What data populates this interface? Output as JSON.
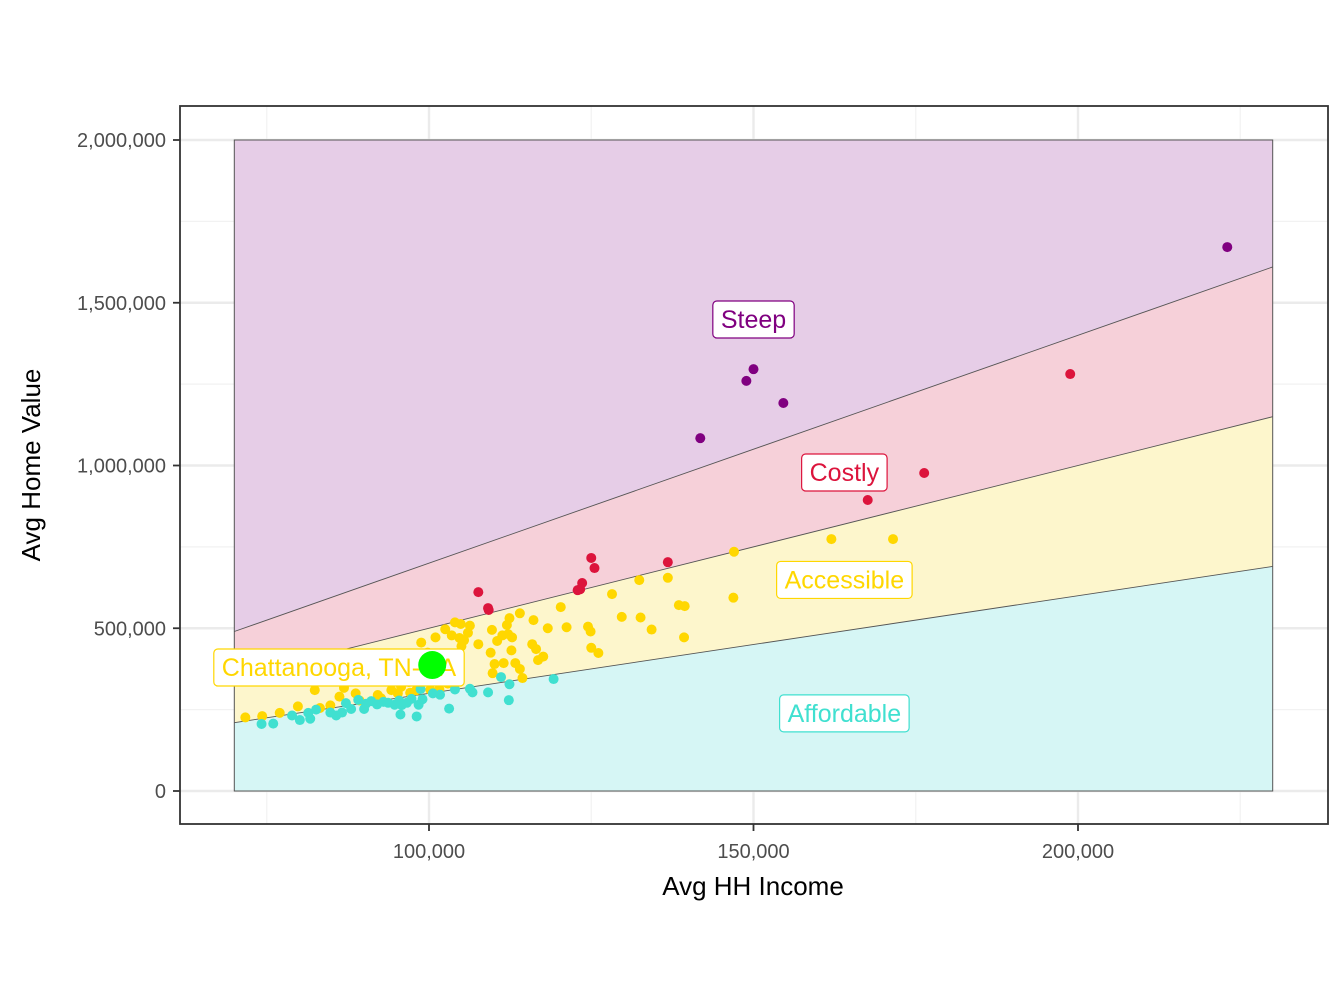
{
  "chart_data": {
    "type": "scatter",
    "title": "",
    "xlabel": "Avg HH Income",
    "ylabel": "Avg Home Value",
    "xlim": [
      62000,
      238000
    ],
    "ylim": [
      -90000,
      2105000
    ],
    "x_ticks": [
      100000,
      150000,
      200000
    ],
    "x_tick_labels": [
      "100,000",
      "150,000",
      "200,000"
    ],
    "y_ticks": [
      0,
      500000,
      1000000,
      1500000,
      2000000
    ],
    "y_tick_labels": [
      "0",
      "500,000",
      "1,000,000",
      "1,500,000",
      "2,000,000"
    ],
    "grid": true,
    "legend": null,
    "regions": {
      "x_range": [
        70000,
        230000
      ],
      "y_max": 2000000,
      "bands": [
        {
          "name": "Affordable",
          "ratio_low": 0,
          "ratio_high": 3,
          "fill": "#d6f6f5",
          "color": "#40e0d0"
        },
        {
          "name": "Accessible",
          "ratio_low": 3,
          "ratio_high": 5,
          "fill": "#fdf6cc",
          "color": "#ffd700"
        },
        {
          "name": "Costly",
          "ratio_low": 5,
          "ratio_high": 7,
          "fill": "#f6d0d9",
          "color": "#dc143c"
        },
        {
          "name": "Steep",
          "ratio_low": 7,
          "ratio_high": null,
          "fill": "#e6cde7",
          "color": "#800080"
        }
      ]
    },
    "region_labels": [
      {
        "text": "Steep",
        "x": 150000,
        "y": 1450000,
        "color": "#800080"
      },
      {
        "text": "Costly",
        "x": 164000,
        "y": 980000,
        "color": "#dc143c"
      },
      {
        "text": "Accessible",
        "x": 164000,
        "y": 650000,
        "color": "#ffd700"
      },
      {
        "text": "Affordable",
        "x": 164000,
        "y": 240000,
        "color": "#40e0d0"
      }
    ],
    "highlight": {
      "label": "Chattanooga, TN-GA",
      "x": 100500,
      "y": 387000,
      "color": "#00ff00",
      "label_color": "#ffd700"
    },
    "series": [
      {
        "name": "Steep",
        "color": "#800080",
        "points": [
          [
            223000,
            1671000
          ],
          [
            150000,
            1296000
          ],
          [
            148900,
            1260000
          ],
          [
            154600,
            1192000
          ],
          [
            141800,
            1084000
          ]
        ]
      },
      {
        "name": "Costly",
        "color": "#dc143c",
        "points": [
          [
            198800,
            1281000
          ],
          [
            176300,
            977000
          ],
          [
            167600,
            894000
          ],
          [
            136800,
            703000
          ],
          [
            125000,
            716000
          ],
          [
            125500,
            685000
          ],
          [
            123600,
            639000
          ],
          [
            123300,
            620000
          ],
          [
            122900,
            617000
          ],
          [
            107600,
            611000
          ],
          [
            109200,
            556000
          ],
          [
            109100,
            562000
          ]
        ]
      },
      {
        "name": "Accessible",
        "color": "#ffd700",
        "points": [
          [
            162000,
            774000
          ],
          [
            171500,
            774000
          ],
          [
            147000,
            735000
          ],
          [
            136800,
            655000
          ],
          [
            146900,
            594000
          ],
          [
            132400,
            648000
          ],
          [
            128200,
            605000
          ],
          [
            139400,
            568000
          ],
          [
            138500,
            571000
          ],
          [
            129700,
            535000
          ],
          [
            132600,
            533000
          ],
          [
            134300,
            496000
          ],
          [
            139300,
            472000
          ],
          [
            120300,
            565000
          ],
          [
            118300,
            500000
          ],
          [
            121200,
            503000
          ],
          [
            116100,
            525000
          ],
          [
            114000,
            546000
          ],
          [
            112400,
            531000
          ],
          [
            124900,
            490000
          ],
          [
            124500,
            505000
          ],
          [
            125000,
            440000
          ],
          [
            126100,
            424000
          ],
          [
            117600,
            413000
          ],
          [
            115900,
            451000
          ],
          [
            116500,
            436000
          ],
          [
            116800,
            402000
          ],
          [
            112200,
            482000
          ],
          [
            111300,
            478000
          ],
          [
            112800,
            472000
          ],
          [
            112000,
            510000
          ],
          [
            109700,
            495000
          ],
          [
            110500,
            461000
          ],
          [
            112700,
            432000
          ],
          [
            113300,
            393000
          ],
          [
            114000,
            375000
          ],
          [
            111500,
            393000
          ],
          [
            114400,
            347000
          ],
          [
            104000,
            518000
          ],
          [
            104900,
            513000
          ],
          [
            106300,
            508000
          ],
          [
            102500,
            497000
          ],
          [
            106000,
            486000
          ],
          [
            103500,
            478000
          ],
          [
            104700,
            470000
          ],
          [
            105400,
            463000
          ],
          [
            107600,
            451000
          ],
          [
            105000,
            445000
          ],
          [
            103900,
            420000
          ],
          [
            104100,
            402000
          ],
          [
            109500,
            425000
          ],
          [
            110100,
            390000
          ],
          [
            109800,
            362000
          ],
          [
            101000,
            472000
          ],
          [
            98800,
            456000
          ],
          [
            99800,
            425000
          ],
          [
            98900,
            413000
          ],
          [
            96000,
            395000
          ],
          [
            96900,
            335000
          ],
          [
            95700,
            320000
          ],
          [
            94200,
            310000
          ],
          [
            95200,
            300000
          ],
          [
            97100,
            302000
          ],
          [
            98000,
            309000
          ],
          [
            100200,
            311000
          ],
          [
            101600,
            313000
          ],
          [
            102900,
            330000
          ],
          [
            92600,
            285000
          ],
          [
            88700,
            300000
          ],
          [
            86200,
            290000
          ],
          [
            84800,
            263000
          ],
          [
            83200,
            255000
          ],
          [
            82400,
            310000
          ],
          [
            79800,
            260000
          ],
          [
            77000,
            240000
          ],
          [
            74300,
            230000
          ],
          [
            71700,
            226000
          ],
          [
            86900,
            317000
          ],
          [
            89300,
            278000
          ],
          [
            92100,
            295000
          ]
        ]
      },
      {
        "name": "Affordable",
        "color": "#40e0d0",
        "points": [
          [
            119200,
            344000
          ],
          [
            112400,
            328000
          ],
          [
            112300,
            279000
          ],
          [
            111100,
            350000
          ],
          [
            109100,
            303000
          ],
          [
            106700,
            303000
          ],
          [
            106300,
            314000
          ],
          [
            104000,
            312000
          ],
          [
            103100,
            253000
          ],
          [
            101700,
            296000
          ],
          [
            100600,
            300000
          ],
          [
            98700,
            313000
          ],
          [
            99000,
            282000
          ],
          [
            98400,
            265000
          ],
          [
            97300,
            283000
          ],
          [
            96600,
            271000
          ],
          [
            95800,
            264000
          ],
          [
            95400,
            278000
          ],
          [
            94700,
            265000
          ],
          [
            93700,
            271000
          ],
          [
            93000,
            274000
          ],
          [
            92000,
            266000
          ],
          [
            91100,
            276000
          ],
          [
            90300,
            268000
          ],
          [
            90000,
            252000
          ],
          [
            98100,
            229000
          ],
          [
            95600,
            235000
          ],
          [
            88000,
            252000
          ],
          [
            86600,
            241000
          ],
          [
            85700,
            232000
          ],
          [
            84800,
            241000
          ],
          [
            82600,
            250000
          ],
          [
            81700,
            222000
          ],
          [
            81400,
            240000
          ],
          [
            80100,
            218000
          ],
          [
            78900,
            232000
          ],
          [
            76000,
            207000
          ],
          [
            74200,
            206000
          ],
          [
            87200,
            270000
          ],
          [
            89100,
            280000
          ]
        ]
      }
    ]
  }
}
